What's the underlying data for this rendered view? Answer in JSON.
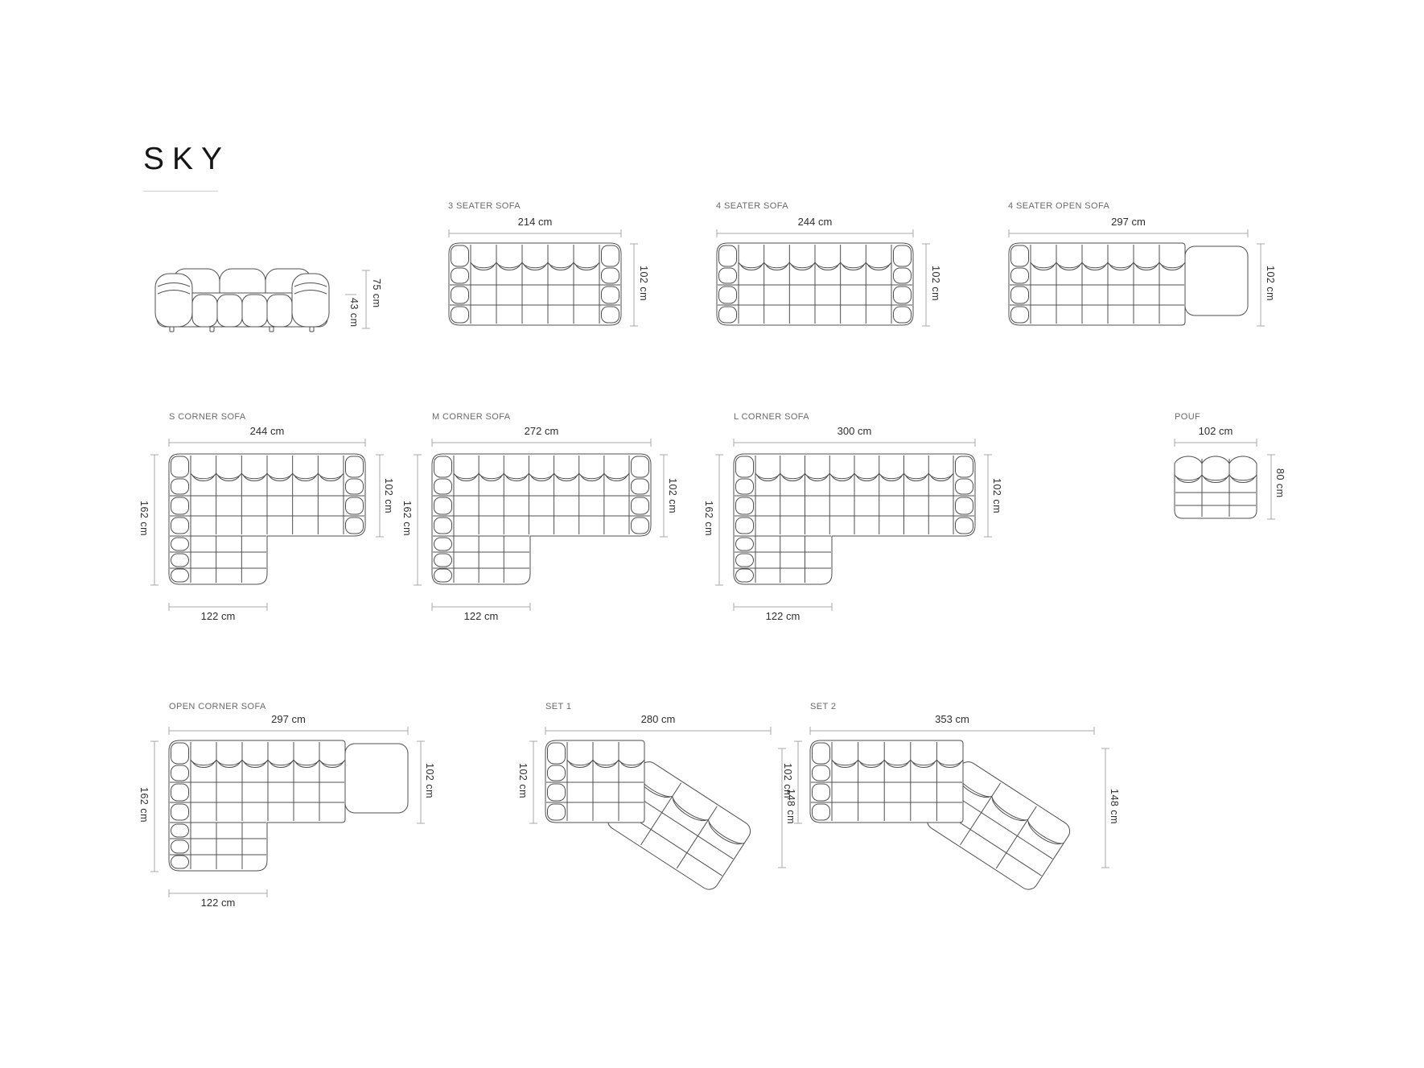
{
  "page": {
    "title": "SKY"
  },
  "units": "cm",
  "diagrams": {
    "front_view": {
      "height": "75 cm",
      "seat_height": "43 cm"
    },
    "three_seater": {
      "label": "3 SEATER SOFA",
      "width": "214 cm",
      "depth": "102 cm"
    },
    "four_seater": {
      "label": "4 SEATER SOFA",
      "width": "244 cm",
      "depth": "102 cm"
    },
    "four_seater_open": {
      "label": "4 SEATER OPEN SOFA",
      "width": "297 cm",
      "depth": "102 cm"
    },
    "s_corner": {
      "label": "S CORNER SOFA",
      "width": "244 cm",
      "total_depth": "162 cm",
      "depth": "102 cm",
      "chaise_width": "122 cm"
    },
    "m_corner": {
      "label": "M CORNER SOFA",
      "width": "272 cm",
      "total_depth": "162 cm",
      "depth": "102 cm",
      "chaise_width": "122 cm"
    },
    "l_corner": {
      "label": "L CORNER SOFA",
      "width": "300 cm",
      "total_depth": "162 cm",
      "depth": "102 cm",
      "chaise_width": "122 cm"
    },
    "pouf": {
      "label": "POUF",
      "width": "102 cm",
      "depth": "80 cm"
    },
    "open_corner": {
      "label": "OPEN CORNER SOFA",
      "width": "297 cm",
      "total_depth": "162 cm",
      "depth": "102 cm",
      "chaise_width": "122 cm"
    },
    "set_1": {
      "label": "SET 1",
      "width": "280 cm",
      "depth": "102 cm",
      "total_depth": "148 cm"
    },
    "set_2": {
      "label": "SET 2",
      "width": "353 cm",
      "depth": "102 cm",
      "total_depth": "148 cm"
    }
  }
}
